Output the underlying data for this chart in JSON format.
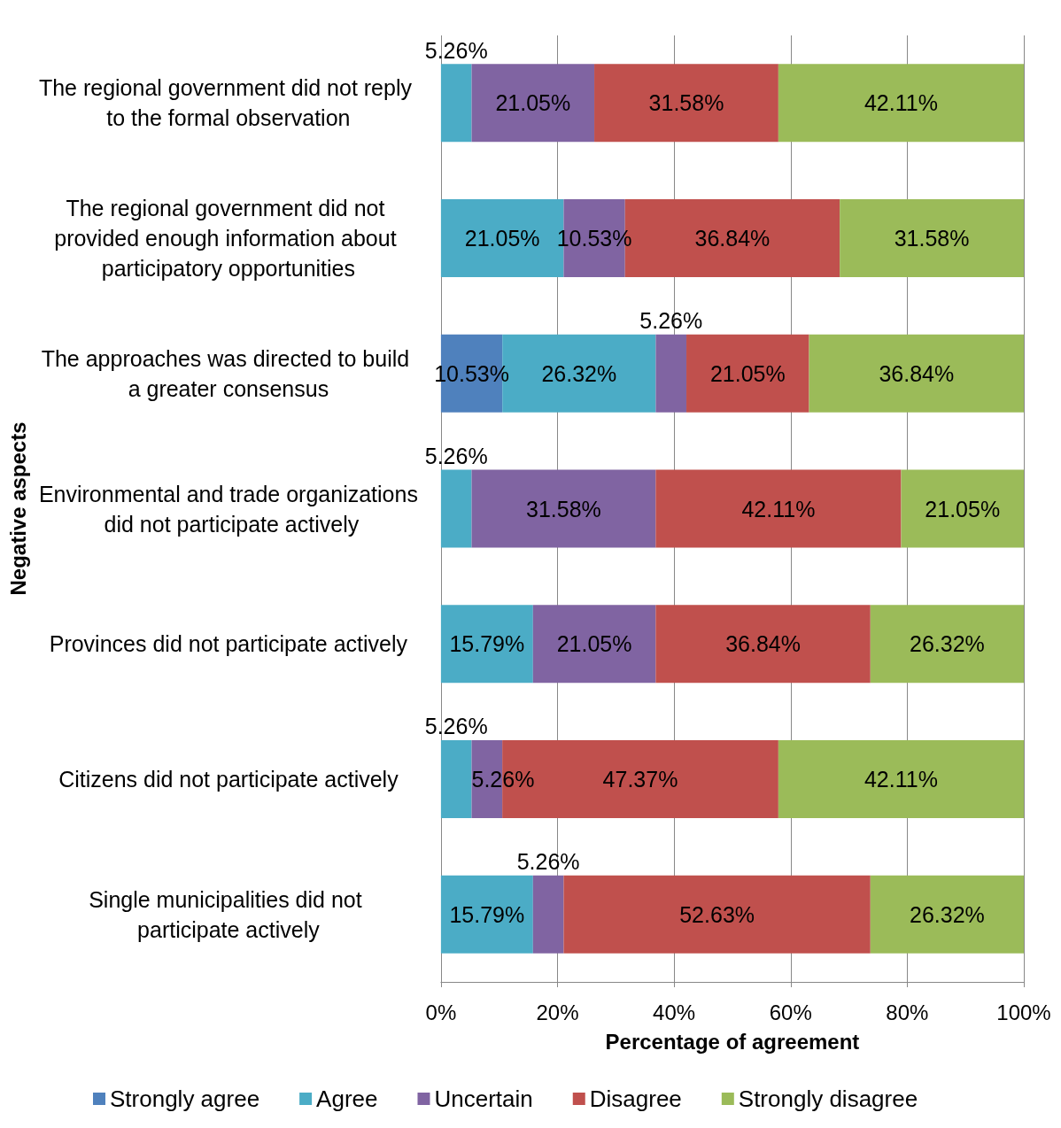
{
  "chart_data": {
    "type": "bar",
    "orientation": "horizontal",
    "stacked": true,
    "xlabel": "Percentage of agreement",
    "ylabel": "Negative aspects",
    "categories": [
      "The regional government did not reply to the formal observation",
      "The regional government did not provided enough information about participatory opportunities",
      "The approaches was directed to build a greater consensus",
      "Environmental and trade organizations did not participate actively",
      "Provinces did not participate actively",
      "Citizens did not participate actively",
      "Single municipalities did not participate actively"
    ],
    "series": [
      {
        "name": "Strongly agree",
        "color": "#4f81bd",
        "values": [
          null,
          null,
          10.53,
          null,
          null,
          null,
          null
        ],
        "value_labels": [
          null,
          null,
          "10.53%",
          null,
          null,
          null,
          null
        ]
      },
      {
        "name": "Agree",
        "color": "#4bacc6",
        "values": [
          5.26,
          21.05,
          26.32,
          5.26,
          15.79,
          5.26,
          15.79
        ],
        "value_labels": [
          "5.26%",
          "21.05%",
          "26.32%",
          "5.26%",
          "15.79%",
          "5.26%",
          "15.79%"
        ]
      },
      {
        "name": "Uncertain",
        "color": "#8064a2",
        "values": [
          21.05,
          10.53,
          5.26,
          31.58,
          21.05,
          5.26,
          5.26
        ],
        "value_labels": [
          "21.05%",
          "10.53%",
          "5.26%",
          "31.58%",
          "21.05%",
          "5.26%",
          "5.26%"
        ]
      },
      {
        "name": "Disagree",
        "color": "#c0504d",
        "values": [
          31.58,
          36.84,
          21.05,
          42.11,
          36.84,
          47.37,
          52.63
        ],
        "value_labels": [
          "31.58%",
          "36.84%",
          "21.05%",
          "42.11%",
          "36.84%",
          "47.37%",
          "52.63%"
        ]
      },
      {
        "name": "Strongly disagree",
        "color": "#9bbb59",
        "values": [
          42.11,
          31.58,
          36.84,
          21.05,
          26.32,
          42.11,
          26.32
        ],
        "value_labels": [
          "42.11%",
          "31.58%",
          "36.84%",
          "21.05%",
          "26.32%",
          "42.11%",
          "26.32%"
        ]
      }
    ],
    "xlim": [
      0,
      100
    ],
    "xticks": [
      {
        "value": 0,
        "label": "0%"
      },
      {
        "value": 20,
        "label": "20%"
      },
      {
        "value": 40,
        "label": "40%"
      },
      {
        "value": 60,
        "label": "60%"
      },
      {
        "value": 80,
        "label": "80%"
      },
      {
        "value": 100,
        "label": "100%"
      }
    ],
    "grid": "x",
    "legend": "bottom"
  }
}
